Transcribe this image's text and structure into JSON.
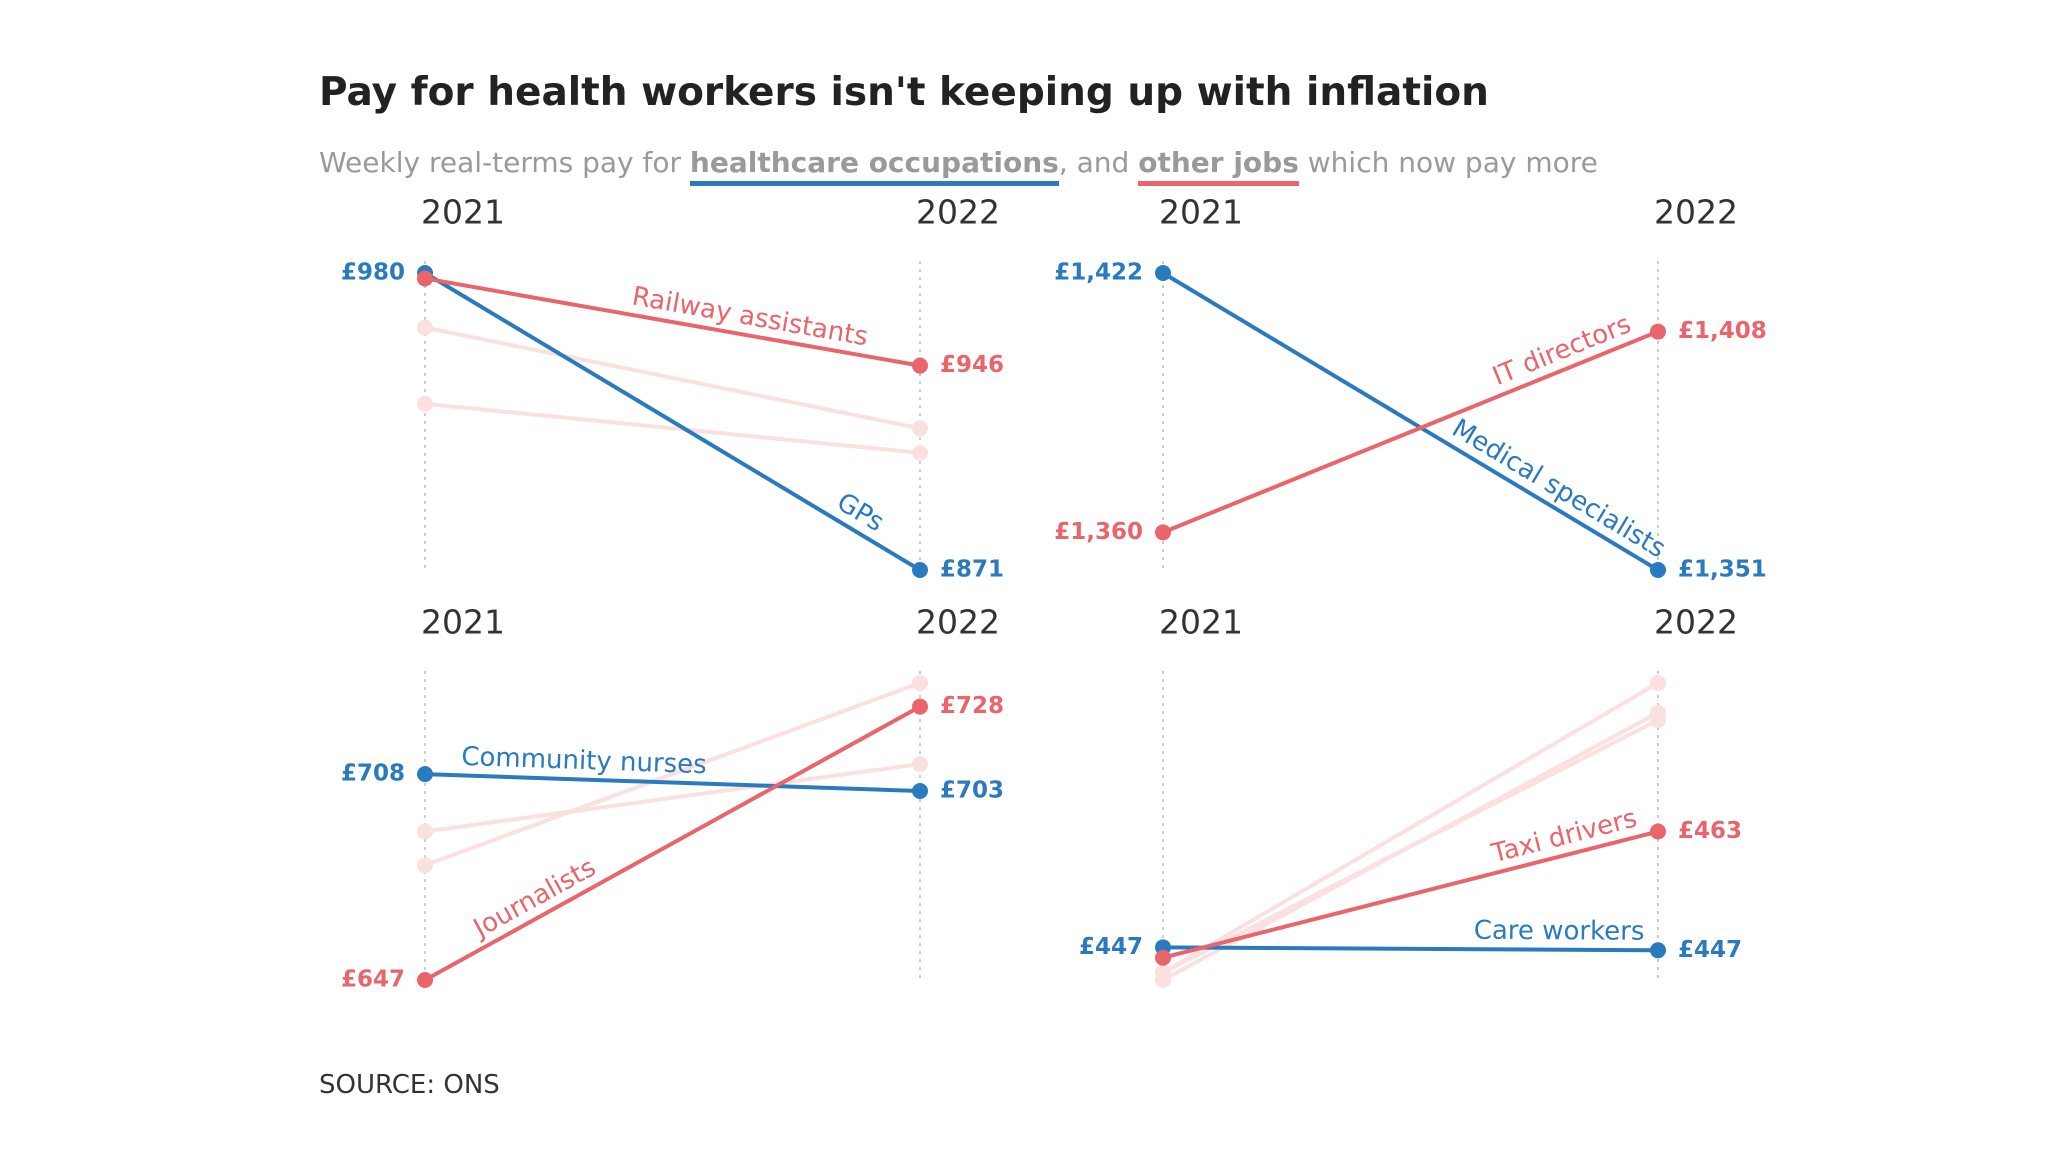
{
  "title": "Pay for health workers isn't keeping up with inflation",
  "subtitle": [
    {
      "text": "Weekly real-terms pay for "
    },
    {
      "text": "healthcare occupations",
      "color": "#2a7abf"
    },
    {
      "text": ", and "
    },
    {
      "text": "other jobs",
      "color": "#e9646b"
    },
    {
      "text": " which now pay more"
    }
  ],
  "source": "SOURCE: ONS",
  "chart_data": [
    {
      "type": "slope",
      "categories": [
        "2021",
        "2022"
      ],
      "ylim": [
        871,
        980
      ],
      "series": [
        {
          "color": "#fbe0e0",
          "values": [
            960,
            923
          ]
        },
        {
          "color": "#fbe0e0",
          "values": [
            932,
            914
          ]
        },
        {
          "name": "GPs",
          "color": "#2a7abf",
          "values": [
            980,
            871
          ],
          "value_labels": [
            "£980",
            "£871"
          ]
        },
        {
          "name": "Railway assistants",
          "color": "#e9646b",
          "values": [
            978,
            946
          ],
          "value_labels": [
            null,
            "£946"
          ]
        }
      ]
    },
    {
      "type": "slope",
      "categories": [
        "2021",
        "2022"
      ],
      "ylim": [
        1351,
        1422
      ],
      "series": [
        {
          "name": "Medical specialists",
          "color": "#2a7abf",
          "values": [
            1422,
            1351
          ],
          "value_labels": [
            "£1,422",
            "£1,351"
          ]
        },
        {
          "name": "IT directors",
          "color": "#e9646b",
          "values": [
            1360,
            1408
          ],
          "value_labels": [
            "£1,360",
            "£1,408"
          ]
        }
      ]
    },
    {
      "type": "slope",
      "categories": [
        "2021",
        "2022"
      ],
      "ylim": [
        647,
        735
      ],
      "series": [
        {
          "color": "#fbe0e0",
          "values": [
            691,
            711
          ]
        },
        {
          "color": "#fbe0e0",
          "values": [
            681,
            735
          ]
        },
        {
          "name": "Community nurses",
          "color": "#2a7abf",
          "values": [
            708,
            703
          ],
          "value_labels": [
            "£708",
            "£703"
          ]
        },
        {
          "name": "Journalists",
          "color": "#e9646b",
          "values": [
            647,
            728
          ],
          "value_labels": [
            "£647",
            "£728"
          ]
        }
      ]
    },
    {
      "type": "slope",
      "categories": [
        "2021",
        "2022"
      ],
      "ylim": [
        443,
        483
      ],
      "series": [
        {
          "color": "#fbe0e0",
          "values": [
            444,
            483
          ]
        },
        {
          "color": "#fbe0e0",
          "values": [
            443,
            479
          ]
        },
        {
          "color": "#fbe0e0",
          "values": [
            444,
            478
          ]
        },
        {
          "name": "Care workers",
          "color": "#2a7abf",
          "values": [
            447.4,
            447
          ],
          "value_labels": [
            "£447",
            "£447"
          ]
        },
        {
          "name": "Taxi drivers",
          "color": "#e9646b",
          "values": [
            446,
            463
          ],
          "value_labels": [
            null,
            "£463"
          ]
        }
      ]
    }
  ]
}
